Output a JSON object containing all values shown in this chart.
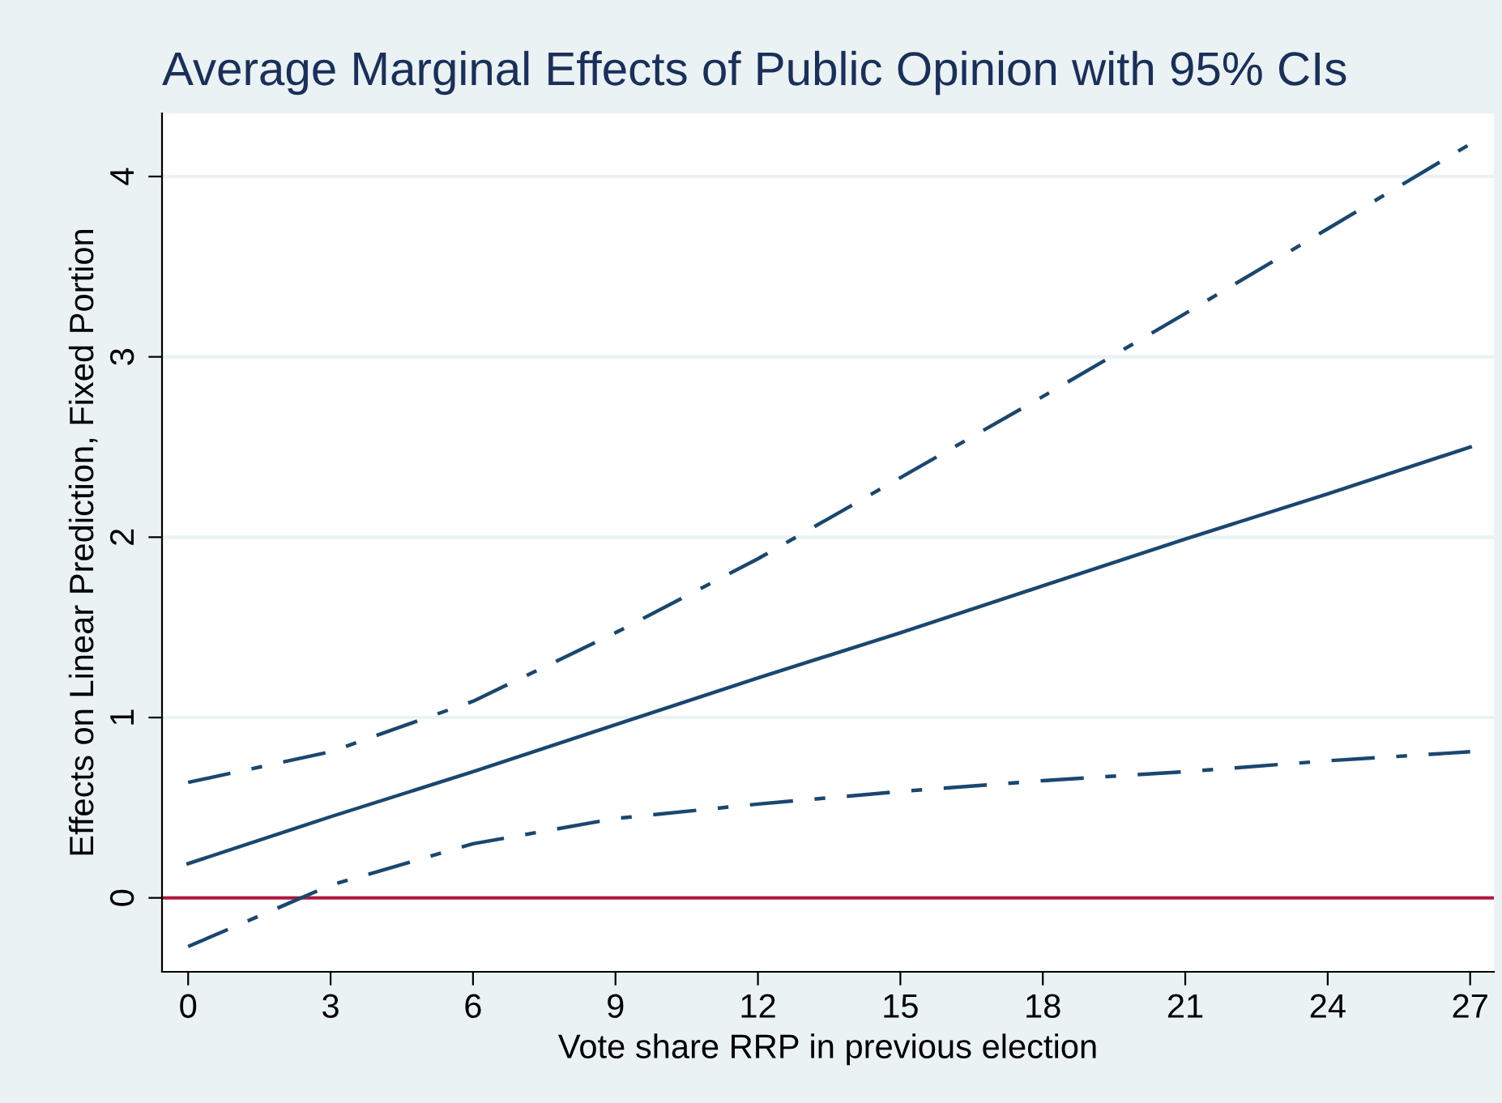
{
  "chart_data": {
    "type": "line",
    "title": "Average Marginal Effects of Public Opinion with 95% CIs",
    "xlabel": "Vote share RRP in previous election",
    "ylabel": "Effects on Linear Prediction, Fixed Portion",
    "x": [
      0,
      3,
      6,
      9,
      12,
      15,
      18,
      21,
      24,
      27
    ],
    "series": [
      {
        "color": "#1a476f",
        "line_style": "solid",
        "values": [
          0.19,
          0.45,
          0.7,
          0.96,
          1.22,
          1.47,
          1.73,
          1.99,
          2.24,
          2.5
        ]
      },
      {
        "color": "#1a476f",
        "line_style": "dashdot",
        "values": [
          0.64,
          0.81,
          1.09,
          1.47,
          1.88,
          2.33,
          2.78,
          3.24,
          3.71,
          4.18
        ]
      },
      {
        "color": "#1a476f",
        "line_style": "dashdot",
        "values": [
          -0.27,
          0.07,
          0.3,
          0.44,
          0.52,
          0.59,
          0.65,
          0.7,
          0.76,
          0.81
        ]
      }
    ],
    "ref_lines": [
      {
        "axis": "y",
        "value": 0,
        "color": "#b0173f"
      }
    ],
    "xlim": [
      -0.55,
      27.5
    ],
    "ylim": [
      -0.41,
      4.35
    ],
    "xticks": [
      0,
      3,
      6,
      9,
      12,
      15,
      18,
      21,
      24,
      27
    ],
    "yticks": [
      0,
      1,
      2,
      3,
      4
    ],
    "grid": "y",
    "marker": "none"
  }
}
